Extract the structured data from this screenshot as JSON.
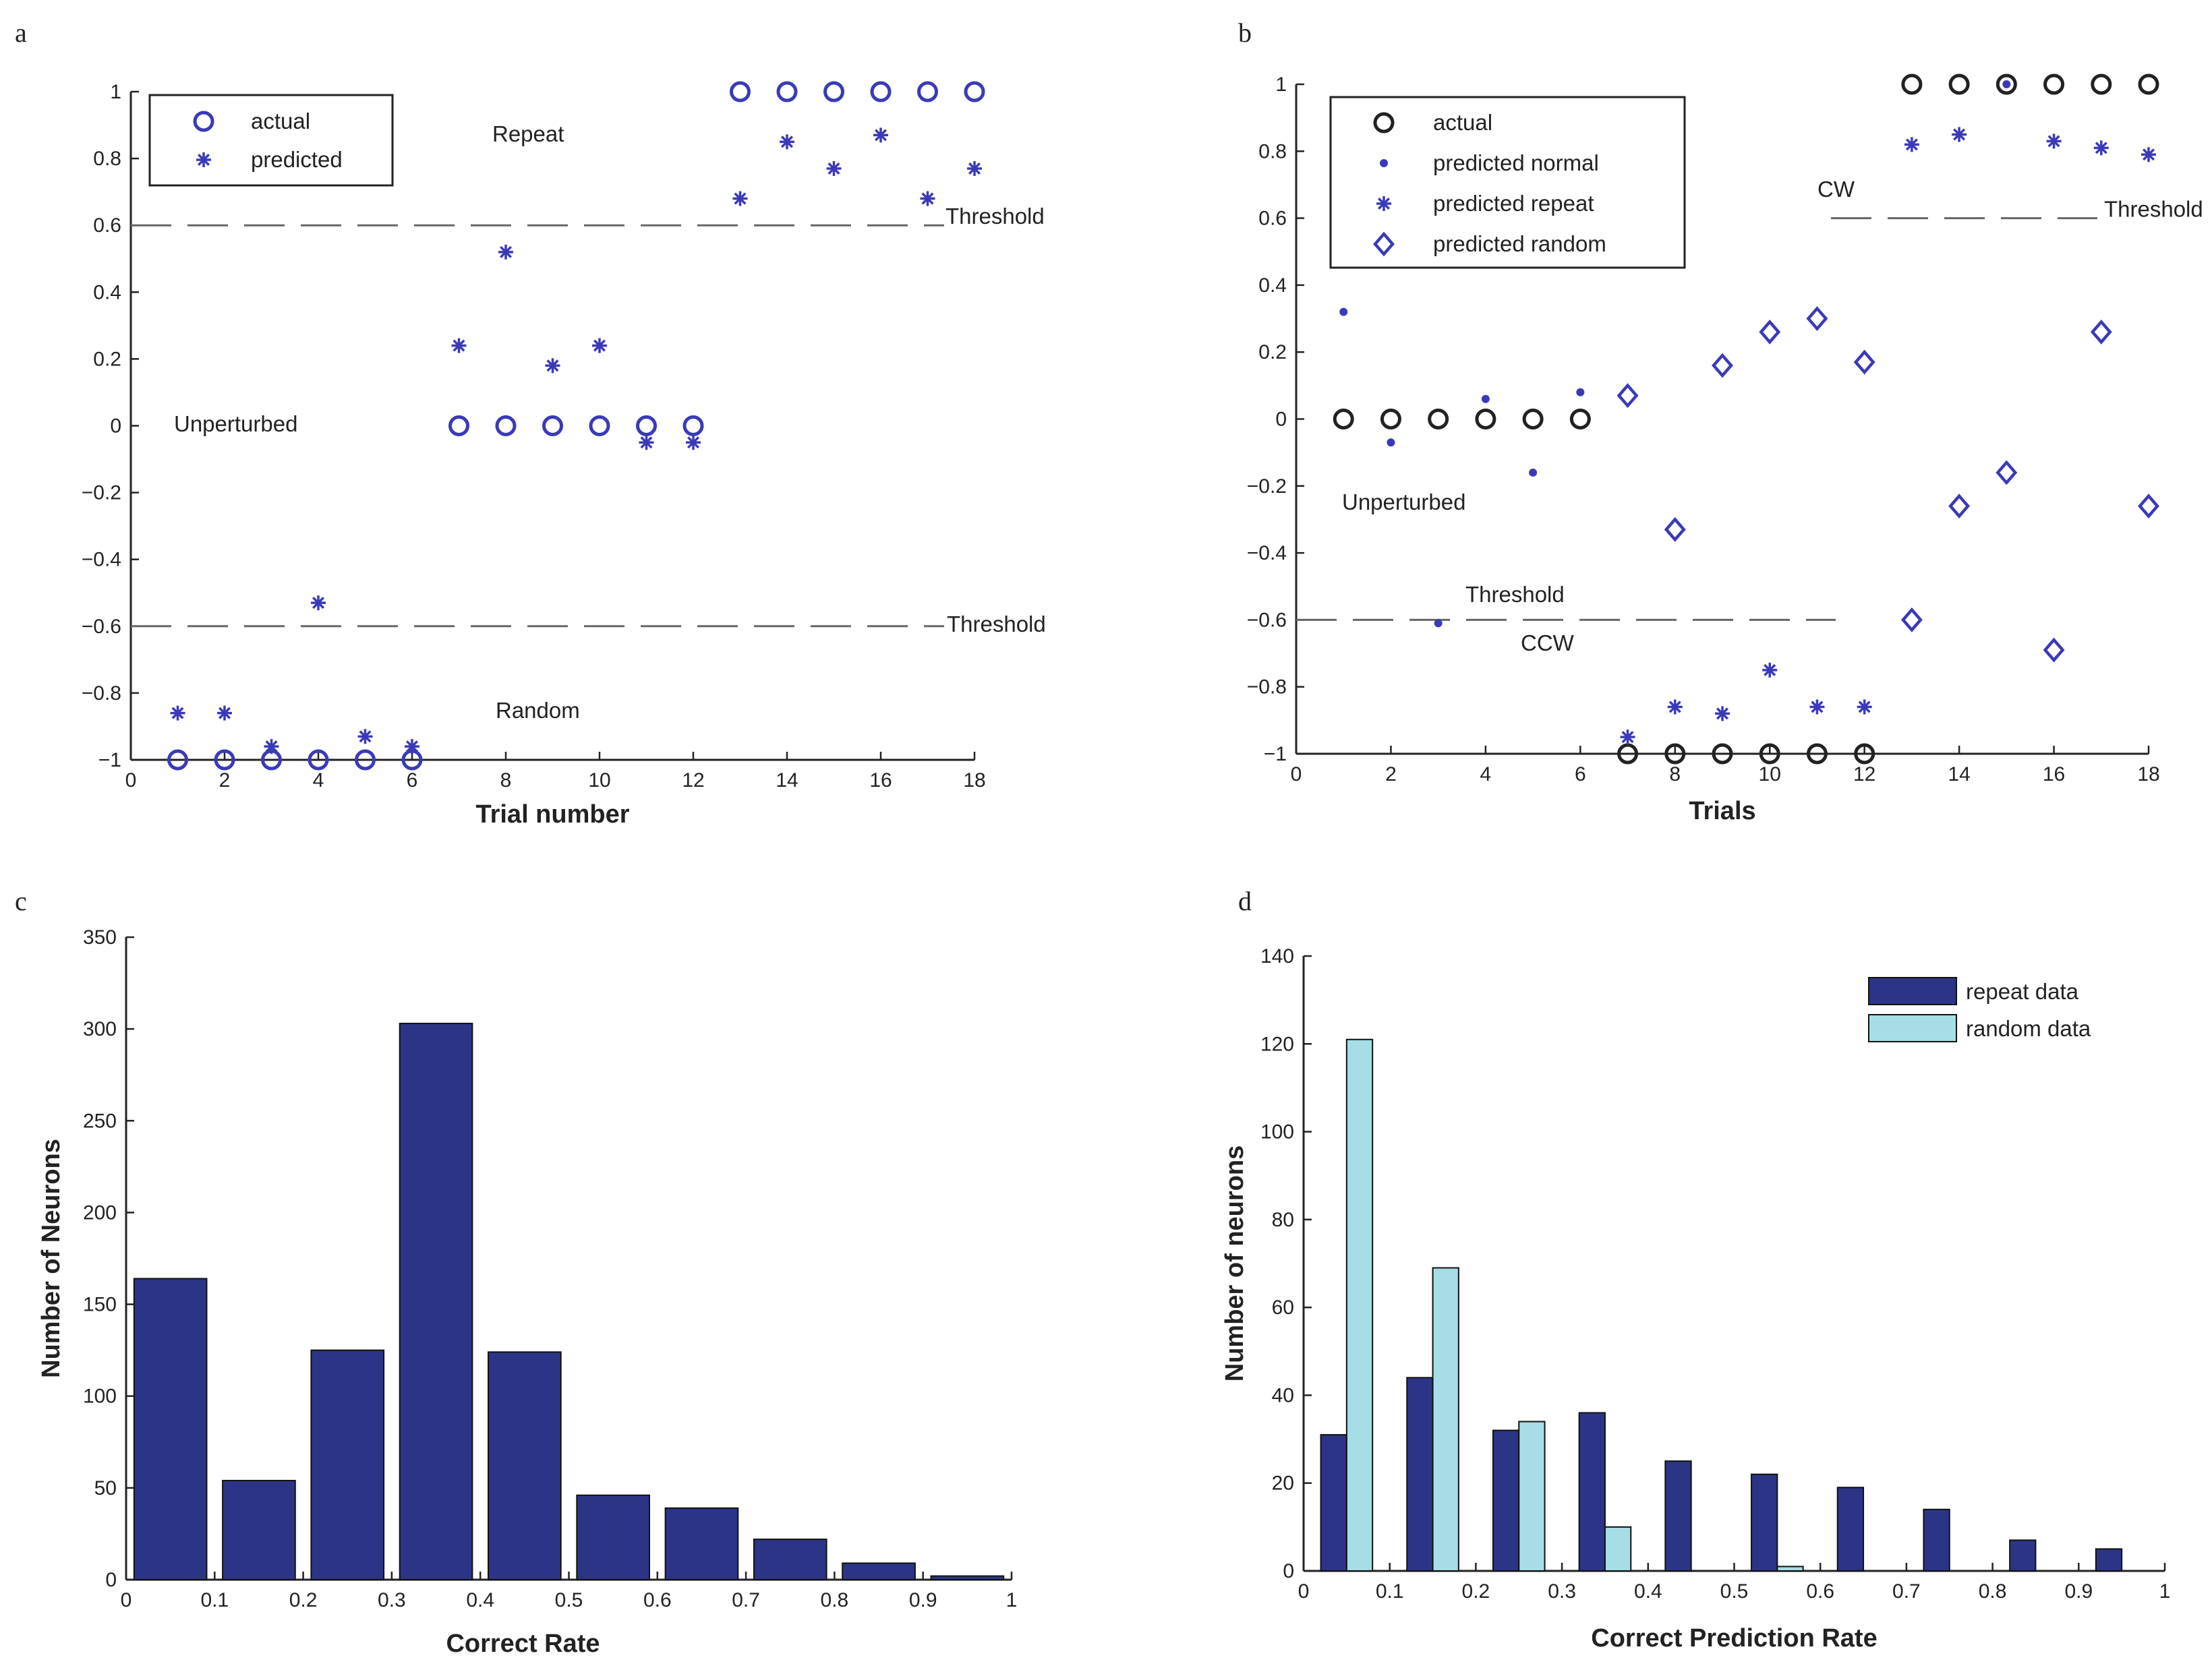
{
  "colors": {
    "marker": "#3a3ab8",
    "actual_b": "#222222",
    "repeat": "#2c3585",
    "random": "#a6dde6",
    "axis": "#222222",
    "threshold": "#666666"
  },
  "chart_data": [
    {
      "panel": "a",
      "type": "scatter",
      "xlabel": "Trial number",
      "ylabel": "",
      "xlim": [
        0,
        18
      ],
      "ylim": [
        -1,
        1
      ],
      "xticks": [
        "0",
        "2",
        "4",
        "6",
        "8",
        "10",
        "12",
        "14",
        "16",
        "18"
      ],
      "yticks": [
        "-1",
        "-0.8",
        "-0.6",
        "-0.4",
        "-0.2",
        "0",
        "0.2",
        "0.4",
        "0.6",
        "0.8",
        "1"
      ],
      "legend": [
        "actual",
        "predicted"
      ],
      "legend_position": "top-left",
      "series": [
        {
          "name": "actual",
          "marker": "circle",
          "x": [
            1,
            2,
            3,
            4,
            5,
            6,
            7,
            8,
            9,
            10,
            11,
            12,
            13,
            14,
            15,
            16,
            17,
            18
          ],
          "y": [
            -1,
            -1,
            -1,
            -1,
            -1,
            -1,
            0,
            0,
            0,
            0,
            0,
            0,
            1,
            1,
            1,
            1,
            1,
            1
          ]
        },
        {
          "name": "predicted",
          "marker": "star",
          "x": [
            1,
            2,
            3,
            4,
            5,
            6,
            7,
            8,
            9,
            10,
            11,
            12,
            13,
            14,
            15,
            16,
            17,
            18
          ],
          "y": [
            -0.86,
            -0.86,
            -0.96,
            -0.53,
            -0.93,
            -0.96,
            0.24,
            0.52,
            0.18,
            0.24,
            -0.05,
            -0.05,
            0.68,
            0.85,
            0.77,
            0.87,
            0.68,
            0.77
          ]
        }
      ],
      "thresholds": [
        0.6,
        -0.6
      ],
      "annotations": {
        "threshold_upper": "Threshold",
        "threshold_lower": "Threshold",
        "repeat": "Repeat",
        "unperturbed": "Unperturbed",
        "random": "Random"
      }
    },
    {
      "panel": "b",
      "type": "scatter",
      "xlabel": "Trials",
      "ylabel": "",
      "xlim": [
        0,
        18
      ],
      "ylim": [
        -1,
        1
      ],
      "xticks": [
        "0",
        "2",
        "4",
        "6",
        "8",
        "10",
        "12",
        "14",
        "16",
        "18"
      ],
      "yticks": [
        "-1",
        "-0.8",
        "-0.6",
        "-0.4",
        "-0.2",
        "0",
        "0.2",
        "0.4",
        "0.6",
        "0.8",
        "1"
      ],
      "legend": [
        "actual",
        "predicted normal",
        "predicted repeat",
        "predicted random"
      ],
      "legend_position": "top-left",
      "series": [
        {
          "name": "actual",
          "marker": "circle",
          "x": [
            1,
            2,
            3,
            4,
            5,
            6,
            7,
            8,
            9,
            10,
            11,
            12,
            13,
            14,
            15,
            16,
            17,
            18
          ],
          "y": [
            0,
            0,
            0,
            0,
            0,
            0,
            -1,
            -1,
            -1,
            -1,
            -1,
            -1,
            1,
            1,
            1,
            1,
            1,
            1
          ]
        },
        {
          "name": "predicted normal",
          "marker": "dot",
          "x": [
            1,
            2,
            3,
            4,
            5,
            6,
            15
          ],
          "y": [
            0.32,
            -0.07,
            -0.61,
            0.06,
            -0.16,
            0.08,
            1
          ]
        },
        {
          "name": "predicted repeat",
          "marker": "star",
          "x": [
            7,
            8,
            9,
            10,
            11,
            12,
            13,
            14,
            16,
            17,
            18
          ],
          "y": [
            -0.95,
            -0.86,
            -0.88,
            -0.75,
            -0.86,
            -0.86,
            0.82,
            0.85,
            0.83,
            0.81,
            0.79
          ]
        },
        {
          "name": "predicted random",
          "marker": "diamond",
          "x": [
            7,
            8,
            9,
            10,
            11,
            12,
            13,
            14,
            15,
            16,
            17,
            18
          ],
          "y": [
            0.07,
            -0.33,
            0.16,
            0.26,
            0.3,
            0.17,
            -0.6,
            -0.26,
            -0.16,
            -0.69,
            0.26,
            -0.26
          ]
        }
      ],
      "thresholds": [
        0.6,
        -0.6
      ],
      "annotations": {
        "threshold_upper": "Threshold",
        "threshold_lower": "Threshold",
        "cw": "CW",
        "ccw": "CCW",
        "unperturbed": "Unperturbed"
      }
    },
    {
      "panel": "c",
      "type": "bar",
      "xlabel": "Correct  Rate",
      "ylabel": "Number of Neurons",
      "xlim": [
        0,
        1
      ],
      "ylim": [
        0,
        350
      ],
      "xticks": [
        "0",
        "0.1",
        "0.2",
        "0.3",
        "0.4",
        "0.5",
        "0.6",
        "0.7",
        "0.8",
        "0.9",
        "1"
      ],
      "yticks": [
        "0",
        "50",
        "100",
        "150",
        "200",
        "250",
        "300",
        "350"
      ],
      "bins": [
        0.05,
        0.15,
        0.25,
        0.35,
        0.45,
        0.55,
        0.65,
        0.75,
        0.85,
        0.95
      ],
      "values": [
        164,
        54,
        125,
        303,
        124,
        46,
        39,
        22,
        9,
        2
      ]
    },
    {
      "panel": "d",
      "type": "bar",
      "xlabel": "Correct Prediction Rate",
      "ylabel": "Number of neurons",
      "xlim": [
        0,
        1
      ],
      "ylim": [
        0,
        140
      ],
      "xticks": [
        "0",
        "0.1",
        "0.2",
        "0.3",
        "0.4",
        "0.5",
        "0.6",
        "0.7",
        "0.8",
        "0.9",
        "1"
      ],
      "yticks": [
        "0",
        "20",
        "40",
        "60",
        "80",
        "100",
        "120",
        "140"
      ],
      "legend": [
        "repeat data",
        "random data"
      ],
      "legend_position": "top-right",
      "bins": [
        0.05,
        0.15,
        0.25,
        0.35,
        0.45,
        0.55,
        0.65,
        0.75,
        0.85,
        0.95
      ],
      "series": [
        {
          "name": "repeat data",
          "values": [
            31,
            44,
            32,
            36,
            25,
            22,
            19,
            14,
            7,
            5
          ]
        },
        {
          "name": "random data",
          "values": [
            121,
            69,
            34,
            10,
            0,
            1,
            0,
            0,
            0,
            0
          ]
        }
      ]
    }
  ]
}
